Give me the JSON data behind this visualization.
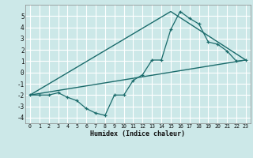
{
  "xlabel": "Humidex (Indice chaleur)",
  "bg_color": "#cce8e8",
  "grid_color": "#ffffff",
  "line_color": "#1a6b6b",
  "xlim": [
    -0.5,
    23.5
  ],
  "ylim": [
    -4.5,
    6.0
  ],
  "xticks": [
    0,
    1,
    2,
    3,
    4,
    5,
    6,
    7,
    8,
    9,
    10,
    11,
    12,
    13,
    14,
    15,
    16,
    17,
    18,
    19,
    20,
    21,
    22,
    23
  ],
  "yticks": [
    -4,
    -3,
    -2,
    -1,
    0,
    1,
    2,
    3,
    4,
    5
  ],
  "series1_x": [
    0,
    1,
    2,
    3,
    4,
    5,
    6,
    7,
    8,
    9,
    10,
    11,
    12,
    13,
    14,
    15,
    16,
    17,
    18,
    19,
    20,
    21,
    22,
    23
  ],
  "series1_y": [
    -2.0,
    -2.0,
    -2.0,
    -1.8,
    -2.2,
    -2.5,
    -3.2,
    -3.6,
    -3.8,
    -2.0,
    -2.0,
    -0.7,
    -0.2,
    1.1,
    1.1,
    3.8,
    5.4,
    4.8,
    4.3,
    2.7,
    2.5,
    1.9,
    1.0,
    1.1
  ],
  "series2_x": [
    0,
    23
  ],
  "series2_y": [
    -2.0,
    1.1
  ],
  "series3_x": [
    0,
    15,
    23
  ],
  "series3_y": [
    -2.0,
    5.4,
    1.1
  ]
}
